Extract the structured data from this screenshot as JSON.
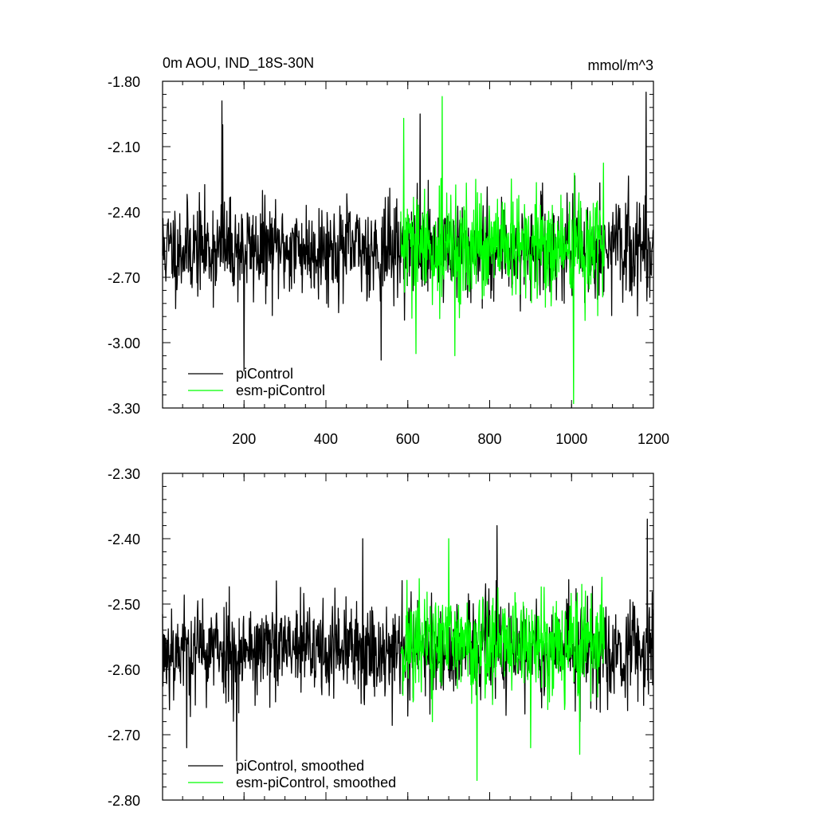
{
  "figure": {
    "title": "0m AOU, IND_18S-30N",
    "units": "mmol/m^3"
  },
  "chart_data": [
    {
      "type": "line",
      "title": "0m AOU, IND_18S-30N",
      "units_label": "mmol/m^3",
      "xlim": [
        1,
        1200
      ],
      "xticks": [
        200,
        400,
        600,
        800,
        1000,
        1200
      ],
      "xtick_labels": [
        "200",
        "400",
        "600",
        "800",
        "1000",
        "1200"
      ],
      "ylim": [
        -3.3,
        -1.8
      ],
      "yticks": [
        -3.3,
        -3.0,
        -2.7,
        -2.4,
        -2.1,
        -1.8
      ],
      "ytick_labels": [
        "-3.30",
        "-3.00",
        "-2.70",
        "-2.40",
        "-2.10",
        "-1.80"
      ],
      "legend_position": "bottom-left",
      "series": [
        {
          "name": "piControl",
          "color": "#000000",
          "x_range": [
            1,
            1200
          ],
          "mean": -2.57,
          "std": 0.155,
          "min": -3.15,
          "max": -1.85,
          "seed": 11,
          "peaks": [
            [
              146,
              -1.89
            ],
            [
              1182,
              -1.85
            ],
            [
              200,
              -3.13
            ],
            [
              148,
              -2.0
            ],
            [
              630,
              -1.95
            ],
            [
              535,
              -3.08
            ]
          ]
        },
        {
          "name": "esm-piControl",
          "color": "#00ff00",
          "x_range": [
            583,
            1080
          ],
          "mean": -2.57,
          "std": 0.175,
          "min": -3.28,
          "max": -1.87,
          "seed": 29,
          "peaks": [
            [
              684,
              -1.87
            ],
            [
              590,
              -1.97
            ],
            [
              1005,
              -3.28
            ],
            [
              715,
              -3.06
            ],
            [
              620,
              -3.05
            ]
          ]
        }
      ]
    },
    {
      "type": "line",
      "xlim": [
        1,
        1200
      ],
      "xticks": [
        200,
        400,
        600,
        800,
        1000,
        1200
      ],
      "ylim": [
        -2.8,
        -2.3
      ],
      "yticks": [
        -2.8,
        -2.7,
        -2.6,
        -2.5,
        -2.4,
        -2.3
      ],
      "ytick_labels": [
        "-2.80",
        "-2.70",
        "-2.60",
        "-2.50",
        "-2.40",
        "-2.30"
      ],
      "legend_position": "bottom-left",
      "series": [
        {
          "name": "piControl, smoothed",
          "color": "#000000",
          "x_range": [
            1,
            1200
          ],
          "mean": -2.57,
          "std": 0.055,
          "min": -2.74,
          "max": -2.37,
          "seed": 53,
          "peaks": [
            [
              1185,
              -2.37
            ],
            [
              818,
              -2.38
            ],
            [
              490,
              -2.4
            ],
            [
              182,
              -2.74
            ],
            [
              60,
              -2.72
            ]
          ]
        },
        {
          "name": "esm-piControl, smoothed",
          "color": "#00ff00",
          "x_range": [
            583,
            1080
          ],
          "mean": -2.56,
          "std": 0.06,
          "min": -2.77,
          "max": -2.4,
          "seed": 71,
          "peaks": [
            [
              700,
              -2.4
            ],
            [
              769,
              -2.77
            ],
            [
              1020,
              -2.73
            ],
            [
              900,
              -2.72
            ],
            [
              660,
              -2.68
            ]
          ]
        }
      ]
    }
  ]
}
